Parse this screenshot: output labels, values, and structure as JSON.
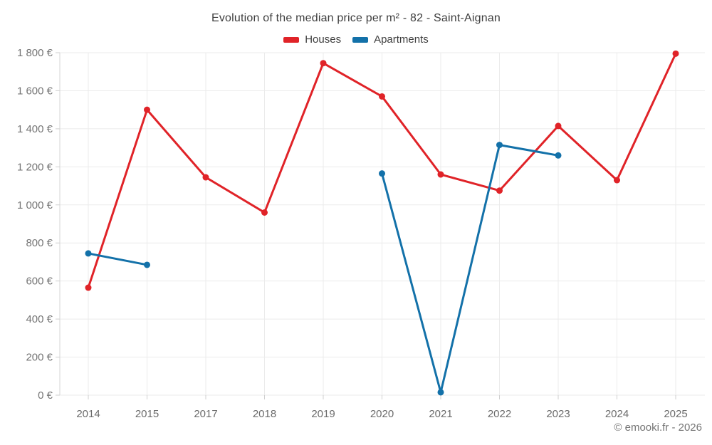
{
  "header": {
    "title": "Evolution of the median price per m² - 82 - Saint-Aignan"
  },
  "legend": {
    "items": [
      {
        "label": "Houses",
        "color": "#e02328"
      },
      {
        "label": "Apartments",
        "color": "#1371a9"
      }
    ]
  },
  "footer": {
    "copyright": "© emooki.fr - 2026"
  },
  "chart_data": {
    "type": "line",
    "title": "Evolution of the median price per m² - 82 - Saint-Aignan",
    "categories": [
      "2014",
      "2015",
      "2017",
      "2018",
      "2019",
      "2020",
      "2021",
      "2022",
      "2023",
      "2024",
      "2025"
    ],
    "series": [
      {
        "name": "Houses",
        "color": "#e02328",
        "values": [
          565,
          1500,
          1145,
          960,
          1745,
          1570,
          1160,
          1075,
          1415,
          1130,
          1795
        ]
      },
      {
        "name": "Apartments",
        "color": "#1371a9",
        "values": [
          745,
          685,
          null,
          null,
          null,
          1165,
          15,
          1315,
          1260,
          null,
          null
        ]
      }
    ],
    "xlabel": "",
    "ylabel": "",
    "ylim": [
      0,
      1800
    ],
    "ytick_step": 200,
    "ytick_labels": [
      "0 €",
      "200 €",
      "400 €",
      "600 €",
      "800 €",
      "1 000 €",
      "1 200 €",
      "1 400 €",
      "1 600 €",
      "1 800 €"
    ],
    "currency": "€",
    "grid": true,
    "legend_position": "top",
    "marker": "circle",
    "grid_color": "#ebebeb",
    "tick_color": "#cfcfcf",
    "axis_line_color": "#d6d6d6"
  }
}
